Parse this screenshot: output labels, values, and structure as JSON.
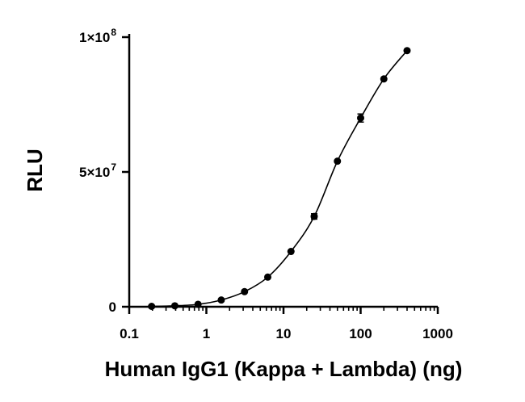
{
  "chart_data": {
    "type": "scatter",
    "title": "",
    "xlabel": "Human IgG1 (Kappa + Lambda) (ng)",
    "ylabel": "RLU",
    "x_scale": "log",
    "xlim": [
      0.1,
      1000
    ],
    "ylim": [
      0,
      100000000
    ],
    "x_ticks": [
      {
        "value": 0.1,
        "label": "0.1"
      },
      {
        "value": 1,
        "label": "1"
      },
      {
        "value": 10,
        "label": "10"
      },
      {
        "value": 100,
        "label": "100"
      },
      {
        "value": 1000,
        "label": "1000"
      }
    ],
    "y_ticks": [
      {
        "value": 0,
        "label": "0",
        "exp": ""
      },
      {
        "value": 50000000,
        "label": "5×10",
        "exp": "7"
      },
      {
        "value": 100000000,
        "label": "1×10",
        "exp": "8"
      }
    ],
    "grid": false,
    "legend": "none",
    "fit": "sigmoidal",
    "series": [
      {
        "x": [
          0.195,
          0.39,
          0.78,
          1.56,
          3.125,
          6.25,
          12.5,
          25,
          50,
          100,
          200,
          400
        ],
        "y": [
          150000,
          350000,
          900000,
          2500000,
          5600000,
          11000000,
          20500000,
          33500000,
          54000000,
          70000000,
          84500000,
          95000000
        ],
        "error": [
          0,
          0,
          0,
          0,
          0,
          0,
          0,
          1000000,
          0,
          1500000,
          0,
          0
        ]
      }
    ],
    "colors": {
      "marker": "#000000",
      "line": "#000000"
    }
  }
}
